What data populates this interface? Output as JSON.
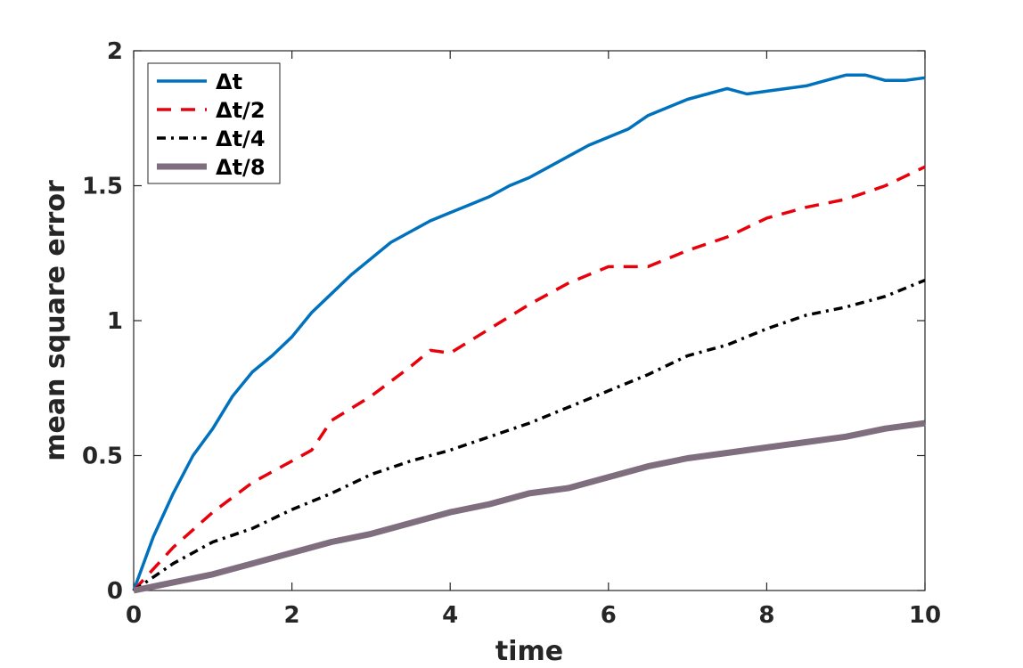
{
  "chart_data": {
    "type": "line",
    "xlabel": "time",
    "ylabel": "mean square error",
    "xlim": [
      0,
      10
    ],
    "ylim": [
      0,
      2
    ],
    "xticks": [
      "0",
      "2",
      "4",
      "6",
      "8",
      "10"
    ],
    "yticks": [
      "0",
      "0.5",
      "1",
      "1.5",
      "2"
    ],
    "grid": false,
    "legend_position": "top-left",
    "series": [
      {
        "name": "Δt",
        "color": "#0072BD",
        "style": "solid",
        "x": [
          0,
          0.25,
          0.5,
          0.75,
          1,
          1.25,
          1.5,
          1.75,
          2,
          2.25,
          2.5,
          2.75,
          3,
          3.25,
          3.5,
          3.75,
          4,
          4.25,
          4.5,
          4.75,
          5,
          5.25,
          5.5,
          5.75,
          6,
          6.25,
          6.5,
          6.75,
          7,
          7.25,
          7.5,
          7.75,
          8,
          8.25,
          8.5,
          8.75,
          9,
          9.25,
          9.5,
          9.75,
          10
        ],
        "y": [
          0,
          0.2,
          0.36,
          0.5,
          0.6,
          0.72,
          0.81,
          0.87,
          0.94,
          1.03,
          1.1,
          1.17,
          1.23,
          1.29,
          1.33,
          1.37,
          1.4,
          1.43,
          1.46,
          1.5,
          1.53,
          1.57,
          1.61,
          1.65,
          1.68,
          1.71,
          1.76,
          1.79,
          1.82,
          1.84,
          1.86,
          1.84,
          1.85,
          1.86,
          1.87,
          1.89,
          1.91,
          1.91,
          1.89,
          1.89,
          1.9
        ]
      },
      {
        "name": "Δt/2",
        "color": "#E8000B",
        "style": "dashed",
        "x": [
          0,
          0.5,
          1,
          1.5,
          2,
          2.25,
          2.5,
          3,
          3.5,
          3.75,
          4,
          4.5,
          5,
          5.5,
          6,
          6.5,
          7,
          7.5,
          8,
          8.5,
          9,
          9.5,
          10
        ],
        "y": [
          0,
          0.16,
          0.29,
          0.4,
          0.48,
          0.52,
          0.63,
          0.72,
          0.83,
          0.89,
          0.88,
          0.97,
          1.06,
          1.14,
          1.2,
          1.2,
          1.26,
          1.31,
          1.38,
          1.42,
          1.45,
          1.5,
          1.57
        ]
      },
      {
        "name": "Δt/4",
        "color": "#000000",
        "style": "dashdot",
        "x": [
          0,
          0.5,
          1,
          1.5,
          2,
          2.5,
          3,
          3.5,
          4,
          4.5,
          5,
          5.5,
          6,
          6.5,
          7,
          7.5,
          8,
          8.5,
          9,
          9.5,
          10
        ],
        "y": [
          0,
          0.1,
          0.18,
          0.23,
          0.3,
          0.36,
          0.43,
          0.48,
          0.52,
          0.57,
          0.62,
          0.68,
          0.74,
          0.8,
          0.87,
          0.91,
          0.97,
          1.02,
          1.05,
          1.09,
          1.15
        ]
      },
      {
        "name": "Δt/8",
        "color": "#7E6E7E",
        "style": "solid-thick",
        "x": [
          0,
          0.5,
          1,
          1.5,
          2,
          2.5,
          3,
          3.5,
          4,
          4.5,
          5,
          5.5,
          6,
          6.5,
          7,
          7.5,
          8,
          8.5,
          9,
          9.5,
          10
        ],
        "y": [
          0,
          0.03,
          0.06,
          0.1,
          0.14,
          0.18,
          0.21,
          0.25,
          0.29,
          0.32,
          0.36,
          0.38,
          0.42,
          0.46,
          0.49,
          0.51,
          0.53,
          0.55,
          0.57,
          0.6,
          0.62
        ]
      }
    ]
  }
}
